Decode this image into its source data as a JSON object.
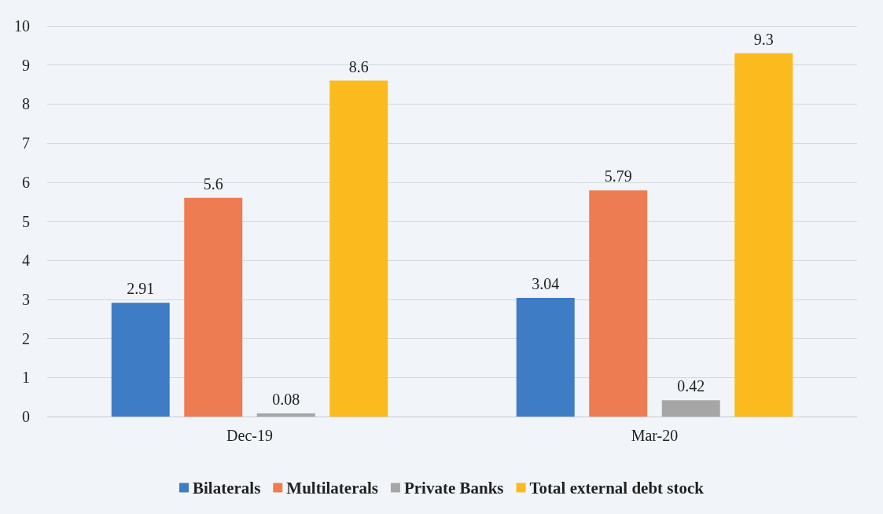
{
  "chart_data": {
    "type": "bar",
    "categories": [
      "Dec-19",
      "Mar-20"
    ],
    "series": [
      {
        "name": "Bilaterals",
        "color": "#3e7cc6",
        "values": [
          2.91,
          3.04
        ]
      },
      {
        "name": "Multilaterals",
        "color": "#ee7c52",
        "values": [
          5.6,
          5.79
        ]
      },
      {
        "name": "Private Banks",
        "color": "#a6a6a6",
        "values": [
          0.08,
          0.42
        ]
      },
      {
        "name": "Total external debt stock",
        "color": "#fbbb1f",
        "values": [
          8.6,
          9.3
        ]
      }
    ],
    "ylim": [
      0,
      10
    ],
    "yticks": [
      0,
      1,
      2,
      3,
      4,
      5,
      6,
      7,
      8,
      9,
      10
    ],
    "grid": "y",
    "legend": "bottom",
    "data_labels": true
  }
}
